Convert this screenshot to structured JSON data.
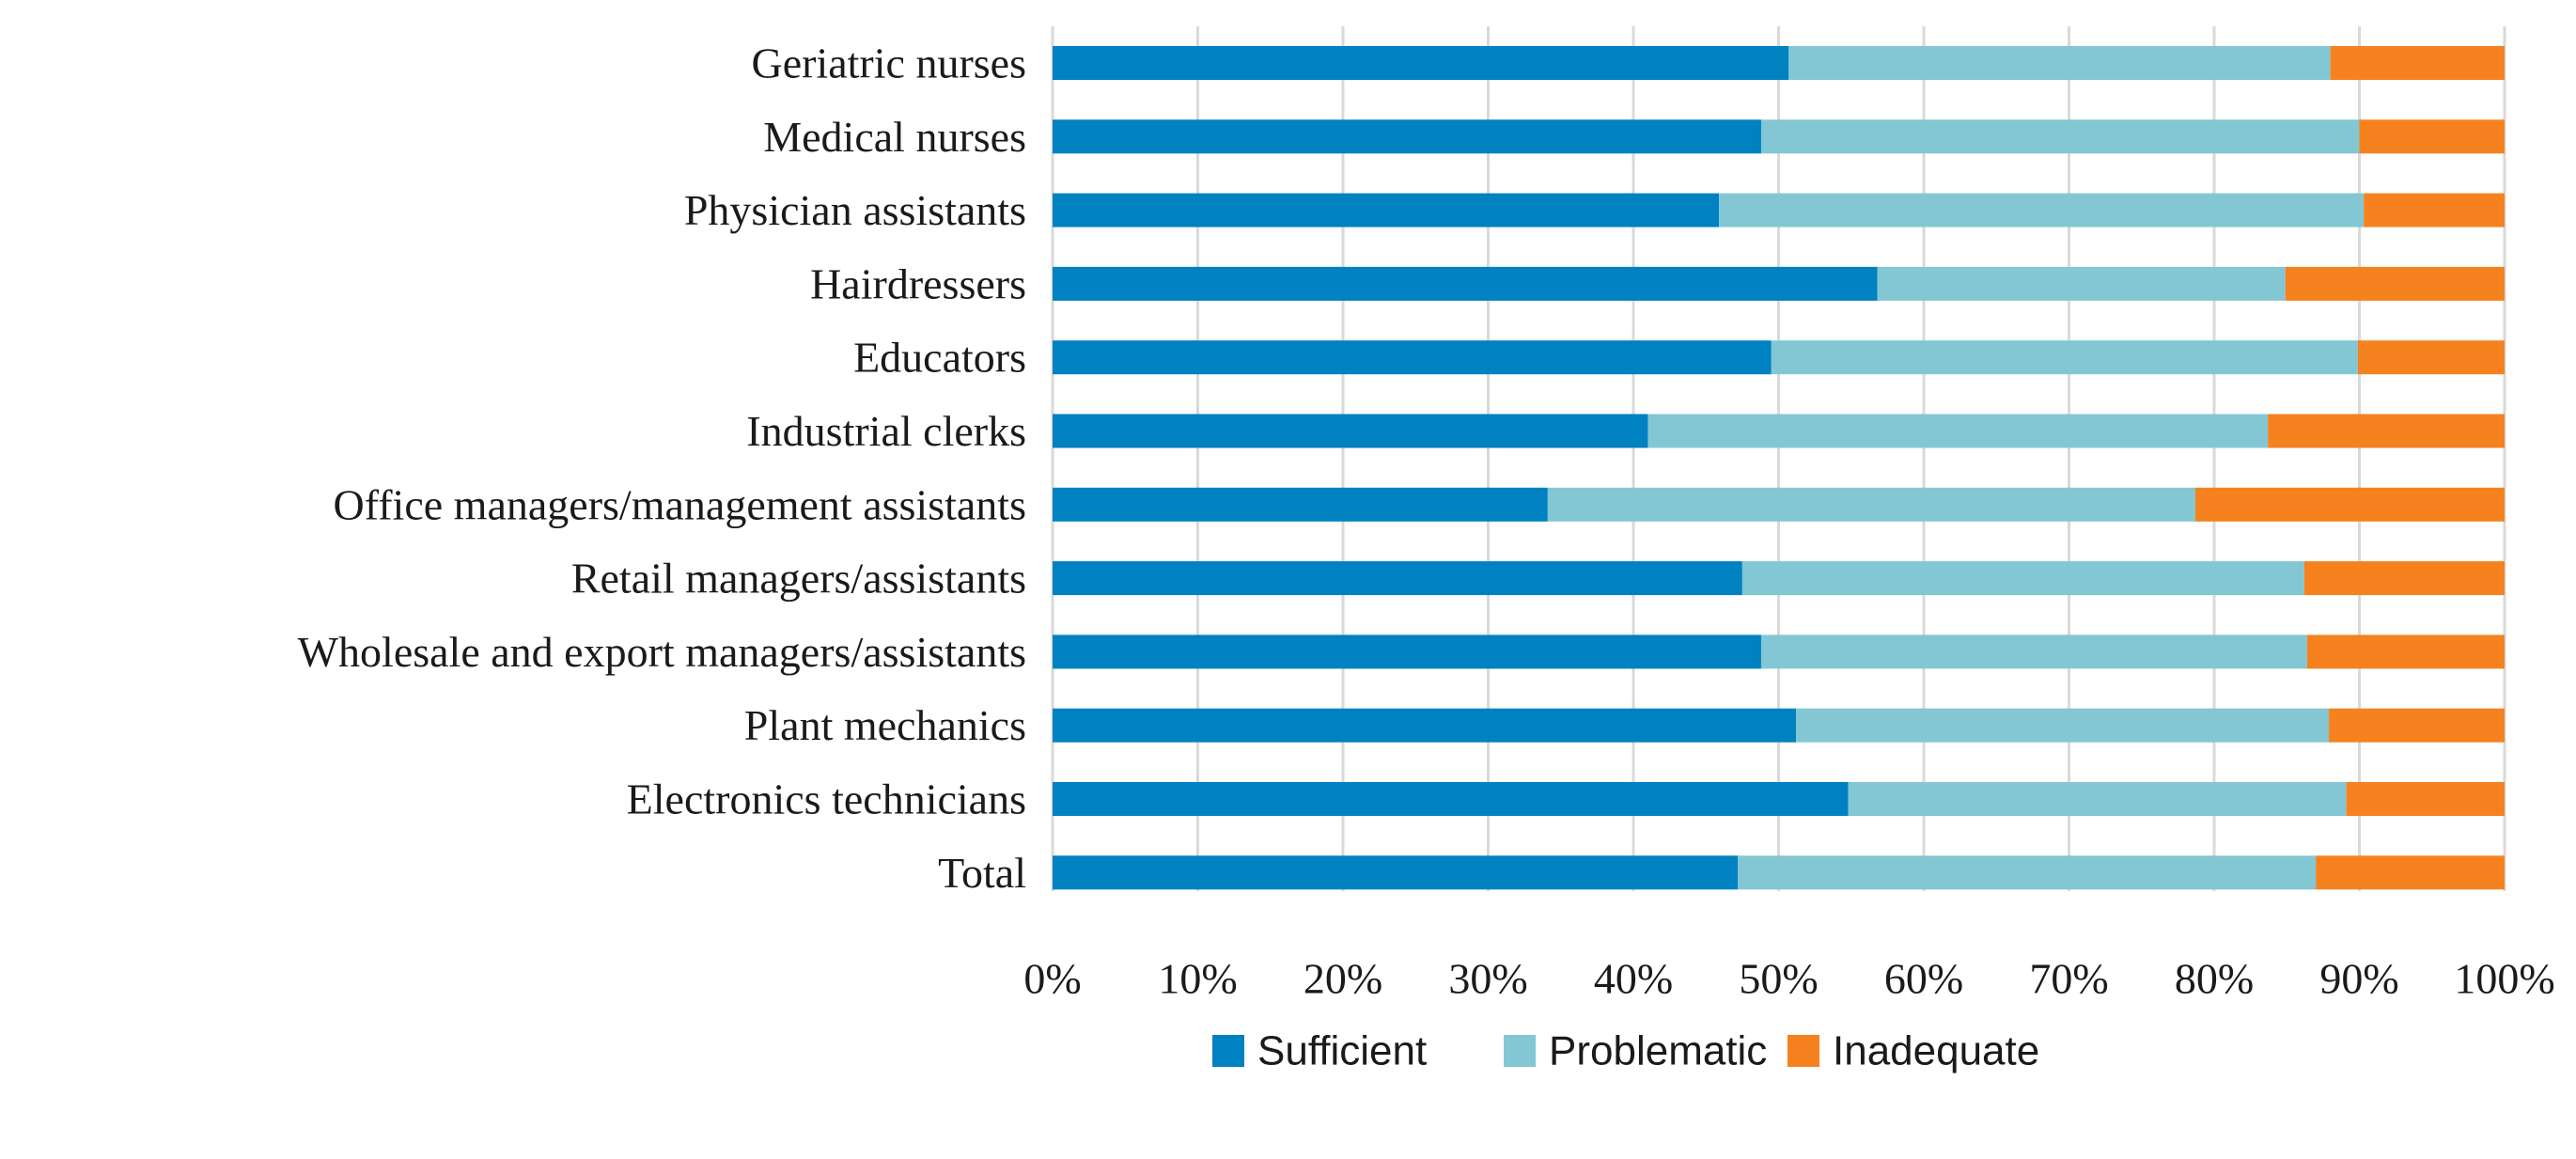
{
  "chart_data": {
    "type": "bar",
    "orientation": "horizontal",
    "stacked": true,
    "title": "",
    "xlabel": "",
    "ylabel": "",
    "xlim": [
      0,
      100
    ],
    "grid": true,
    "legend_position": "bottom",
    "categories": [
      "Geriatric nurses",
      "Medical nurses",
      "Physician assistants",
      "Hairdressers",
      "Educators",
      "Industrial clerks",
      "Office managers/management assistants",
      "Retail managers/assistants",
      "Wholesale and export managers/assistants",
      "Plant mechanics",
      "Electronics technicians",
      "Total"
    ],
    "series": [
      {
        "name": "Sufficient",
        "color": "#0081C1",
        "values": [
          50.7,
          48.8,
          45.9,
          56.8,
          49.5,
          41.0,
          34.1,
          47.5,
          48.8,
          51.2,
          54.8,
          47.2
        ]
      },
      {
        "name": "Problematic",
        "color": "#83C7D4",
        "values": [
          37.3,
          41.2,
          44.4,
          28.1,
          40.4,
          42.7,
          44.6,
          38.7,
          37.6,
          36.7,
          34.3,
          39.8
        ]
      },
      {
        "name": "Inadequate",
        "color": "#F5821F",
        "values": [
          12.0,
          10.0,
          9.7,
          15.1,
          10.1,
          16.3,
          21.3,
          13.8,
          13.6,
          12.1,
          10.9,
          13.0
        ]
      }
    ],
    "ticks": [
      "0%",
      "10%",
      "20%",
      "30%",
      "40%",
      "50%",
      "60%",
      "70%",
      "80%",
      "90%",
      "100%"
    ]
  }
}
